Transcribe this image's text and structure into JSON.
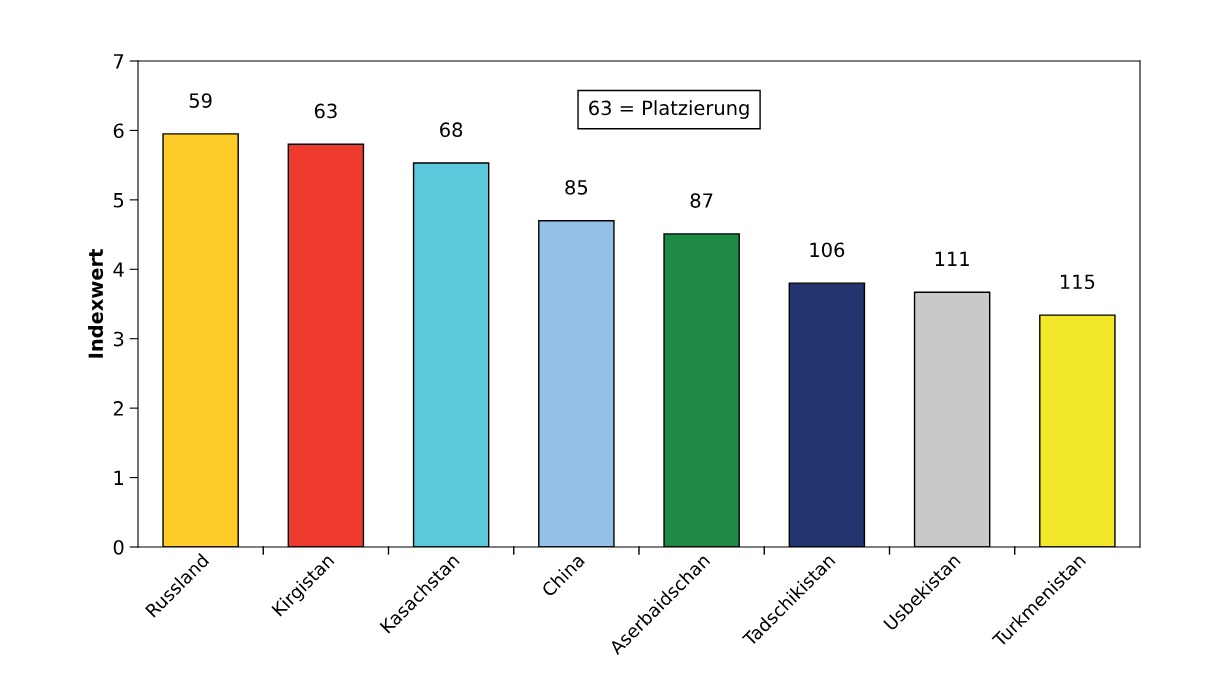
{
  "chart_data": {
    "type": "bar",
    "ylabel": "Indexwert",
    "categories": [
      "Russland",
      "Kirgistan",
      "Kasachstan",
      "China",
      "Aserbaidschan",
      "Tadschikistan",
      "Usbekistan",
      "Turkmenistan"
    ],
    "values": [
      5.95,
      5.8,
      5.53,
      4.7,
      4.51,
      3.8,
      3.67,
      3.34
    ],
    "colors": [
      "#ffcc29",
      "#ee3a2d",
      "#5bc8dc",
      "#94c0e8",
      "#1f8a45",
      "#22356e",
      "#c8c9cb",
      "#f2e829"
    ],
    "annotations": [
      "63 = Platzierung",
      {
        "text": "59",
        "x": "Russland",
        "y": 5.95
      },
      {
        "text": "63",
        "x": "Kirgistan",
        "y": 5.8
      },
      {
        "text": "68",
        "x": "Kasachstan",
        "y": 5.53
      },
      {
        "text": "85",
        "x": "China",
        "y": 4.7
      },
      {
        "text": "87",
        "x": "Aserbaidschan",
        "y": 4.51
      },
      {
        "text": "106",
        "x": "Tadschikistan",
        "y": 3.8
      },
      {
        "text": "111",
        "x": "Usbekistan",
        "y": 3.67
      },
      {
        "text": "115",
        "x": "Turkmenistan",
        "y": 3.34
      }
    ],
    "ylim": [
      0,
      7
    ],
    "yticks": [
      0,
      1,
      2,
      3,
      4,
      5,
      6,
      7
    ],
    "grid": false,
    "legend": false
  }
}
